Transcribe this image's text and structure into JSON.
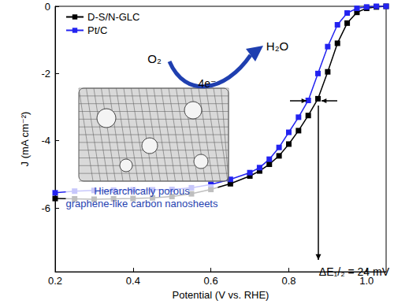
{
  "chart_data": {
    "type": "line",
    "x_label": "Potential (V vs. RHE)",
    "y_label": "J (mA cm⁻²)",
    "xlim": [
      0.2,
      1.05
    ],
    "xticks": [
      0.2,
      0.4,
      0.6,
      0.8,
      {
        "value": 1,
        "label": "1.0"
      }
    ],
    "ylim": [
      -7.9,
      0
    ],
    "yticks": [
      -6,
      -4,
      -2,
      0
    ],
    "grid": false,
    "legend": "upper left",
    "marker": "square",
    "x": [
      0.2,
      0.25,
      0.3,
      0.35,
      0.4,
      0.45,
      0.5,
      0.55,
      0.6,
      0.65,
      0.7,
      0.725,
      0.75,
      0.775,
      0.8,
      0.825,
      0.85,
      0.875,
      0.9,
      0.925,
      0.95,
      0.975,
      1.0,
      1.025,
      1.05
    ],
    "series": [
      {
        "name": "D-S/N-GLC",
        "color": "#000000",
        "values": [
          -5.72,
          -5.73,
          -5.74,
          -5.73,
          -5.72,
          -5.7,
          -5.66,
          -5.58,
          -5.45,
          -5.28,
          -5.05,
          -4.9,
          -4.7,
          -4.45,
          -4.1,
          -3.7,
          -3.25,
          -2.75,
          -1.95,
          -1.1,
          -0.5,
          -0.18,
          -0.06,
          -0.02,
          0
        ]
      },
      {
        "name": "Pt/C",
        "color": "#2323f0",
        "values": [
          -5.55,
          -5.5,
          -5.48,
          -5.47,
          -5.46,
          -5.46,
          -5.45,
          -5.4,
          -5.3,
          -5.15,
          -4.95,
          -4.8,
          -4.55,
          -4.2,
          -3.75,
          -3.3,
          -2.8,
          -2.0,
          -1.2,
          -0.55,
          -0.2,
          -0.06,
          -0.02,
          0,
          0
        ]
      }
    ],
    "annotations": [
      {
        "text": "O₂"
      },
      {
        "text": "H₂O"
      },
      {
        "text": "4e⁻"
      },
      {
        "text": "Hierarchically porous\ngraphene-like carbon nanosheets"
      },
      {
        "text": "ΔE₁/₂ = 24 mV"
      }
    ]
  }
}
